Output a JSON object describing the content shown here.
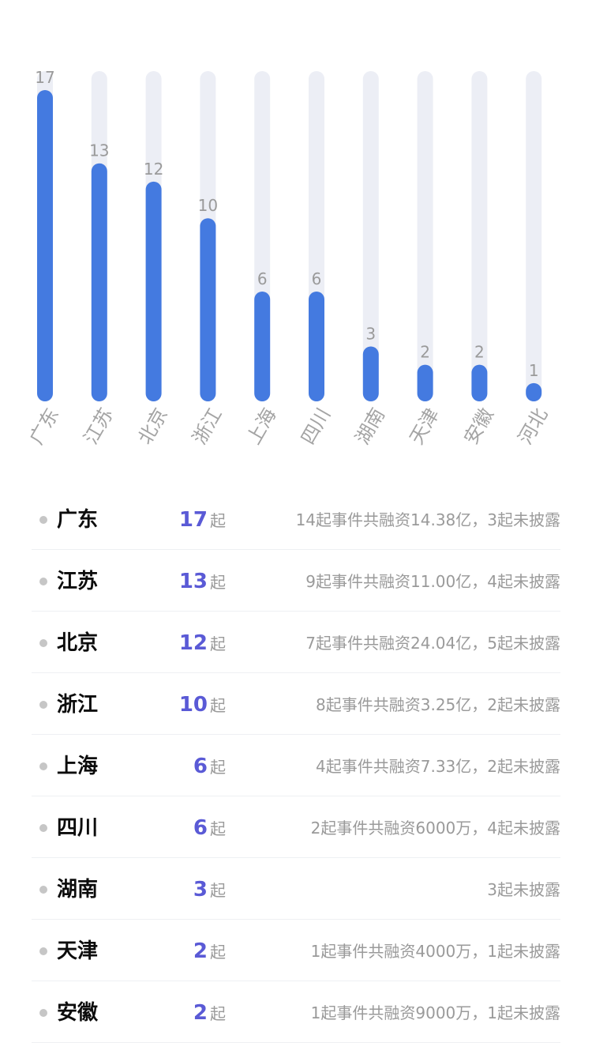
{
  "chart_data": {
    "type": "bar",
    "categories": [
      "广东",
      "江苏",
      "北京",
      "浙江",
      "上海",
      "四川",
      "湖南",
      "天津",
      "安徽",
      "河北"
    ],
    "values": [
      17,
      13,
      12,
      10,
      6,
      6,
      3,
      2,
      2,
      1
    ],
    "ylim": [
      0,
      17
    ],
    "grid": false,
    "colors": {
      "bar": "#447ae0",
      "track": "#eceef5"
    }
  },
  "list": {
    "unit": "起",
    "items": [
      {
        "province": "广东",
        "count": "17",
        "desc": "14起事件共融资14.38亿，3起未披露"
      },
      {
        "province": "江苏",
        "count": "13",
        "desc": "9起事件共融资11.00亿，4起未披露"
      },
      {
        "province": "北京",
        "count": "12",
        "desc": "7起事件共融资24.04亿，5起未披露"
      },
      {
        "province": "浙江",
        "count": "10",
        "desc": "8起事件共融资3.25亿，2起未披露"
      },
      {
        "province": "上海",
        "count": "6",
        "desc": "4起事件共融资7.33亿，2起未披露"
      },
      {
        "province": "四川",
        "count": "6",
        "desc": "2起事件共融资6000万，4起未披露"
      },
      {
        "province": "湖南",
        "count": "3",
        "desc": "3起未披露"
      },
      {
        "province": "天津",
        "count": "2",
        "desc": "1起事件共融资4000万，1起未披露"
      },
      {
        "province": "安徽",
        "count": "2",
        "desc": "1起事件共融资9000万，1起未披露"
      }
    ]
  }
}
